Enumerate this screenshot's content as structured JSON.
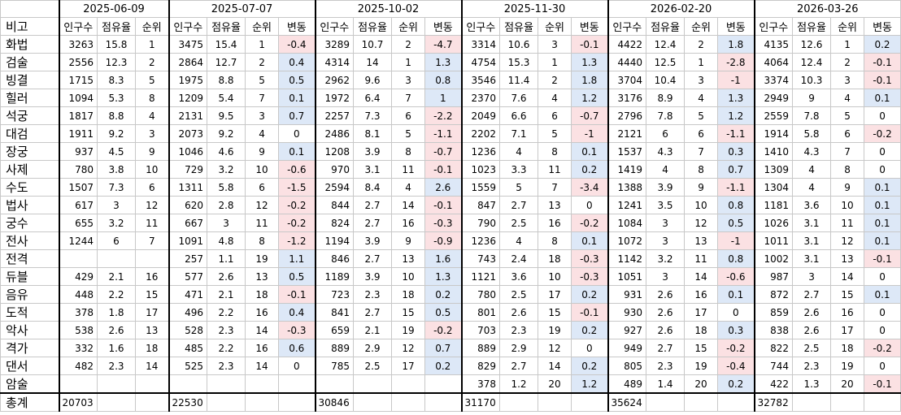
{
  "header_label": "비고",
  "total_label": "총계",
  "sub_headers": {
    "pop": "인구수",
    "share": "점유율",
    "rank": "순위",
    "change": "변동"
  },
  "colors": {
    "positive": "#dde8f7",
    "negative": "#fbe1e3"
  },
  "snapshots": [
    {
      "date": "2025-06-09",
      "has_change": false,
      "total": "20703",
      "rows": [
        [
          "3263",
          "15.8",
          "1",
          ""
        ],
        [
          "2556",
          "12.3",
          "2",
          ""
        ],
        [
          "1715",
          "8.3",
          "5",
          ""
        ],
        [
          "1094",
          "5.3",
          "8",
          ""
        ],
        [
          "1817",
          "8.8",
          "4",
          ""
        ],
        [
          "1911",
          "9.2",
          "3",
          ""
        ],
        [
          "937",
          "4.5",
          "9",
          ""
        ],
        [
          "780",
          "3.8",
          "10",
          ""
        ],
        [
          "1507",
          "7.3",
          "6",
          ""
        ],
        [
          "617",
          "3",
          "12",
          ""
        ],
        [
          "655",
          "3.2",
          "11",
          ""
        ],
        [
          "1244",
          "6",
          "7",
          ""
        ],
        [
          "",
          "",
          "",
          ""
        ],
        [
          "429",
          "2.1",
          "16",
          ""
        ],
        [
          "448",
          "2.2",
          "15",
          ""
        ],
        [
          "378",
          "1.8",
          "17",
          ""
        ],
        [
          "538",
          "2.6",
          "13",
          ""
        ],
        [
          "332",
          "1.6",
          "18",
          ""
        ],
        [
          "482",
          "2.3",
          "14",
          ""
        ],
        [
          "",
          "",
          "",
          ""
        ]
      ]
    },
    {
      "date": "2025-07-07",
      "has_change": true,
      "total": "22530",
      "rows": [
        [
          "3475",
          "15.4",
          "1",
          "-0.4"
        ],
        [
          "2864",
          "12.7",
          "2",
          "0.4"
        ],
        [
          "1975",
          "8.8",
          "5",
          "0.5"
        ],
        [
          "1209",
          "5.4",
          "7",
          "0.1"
        ],
        [
          "2131",
          "9.5",
          "3",
          "0.7"
        ],
        [
          "2073",
          "9.2",
          "4",
          "0"
        ],
        [
          "1046",
          "4.6",
          "9",
          "0.1"
        ],
        [
          "729",
          "3.2",
          "10",
          "-0.6"
        ],
        [
          "1311",
          "5.8",
          "6",
          "-1.5"
        ],
        [
          "620",
          "2.8",
          "12",
          "-0.2"
        ],
        [
          "667",
          "3",
          "11",
          "-0.2"
        ],
        [
          "1091",
          "4.8",
          "8",
          "-1.2"
        ],
        [
          "257",
          "1.1",
          "19",
          "1.1"
        ],
        [
          "577",
          "2.6",
          "13",
          "0.5"
        ],
        [
          "471",
          "2.1",
          "18",
          "-0.1"
        ],
        [
          "496",
          "2.2",
          "16",
          "0.4"
        ],
        [
          "528",
          "2.3",
          "14",
          "-0.3"
        ],
        [
          "485",
          "2.2",
          "16",
          "0.6"
        ],
        [
          "525",
          "2.3",
          "14",
          "0"
        ],
        [
          "",
          "",
          "",
          ""
        ]
      ]
    },
    {
      "date": "2025-10-02",
      "has_change": true,
      "total": "30846",
      "rows": [
        [
          "3289",
          "10.7",
          "2",
          "-4.7"
        ],
        [
          "4314",
          "14",
          "1",
          "1.3"
        ],
        [
          "2962",
          "9.6",
          "3",
          "0.8"
        ],
        [
          "1972",
          "6.4",
          "7",
          "1"
        ],
        [
          "2257",
          "7.3",
          "6",
          "-2.2"
        ],
        [
          "2486",
          "8.1",
          "5",
          "-1.1"
        ],
        [
          "1208",
          "3.9",
          "8",
          "-0.7"
        ],
        [
          "970",
          "3.1",
          "11",
          "-0.1"
        ],
        [
          "2594",
          "8.4",
          "4",
          "2.6"
        ],
        [
          "844",
          "2.7",
          "14",
          "-0.1"
        ],
        [
          "824",
          "2.7",
          "16",
          "-0.3"
        ],
        [
          "1194",
          "3.9",
          "9",
          "-0.9"
        ],
        [
          "846",
          "2.7",
          "13",
          "1.6"
        ],
        [
          "1189",
          "3.9",
          "10",
          "1.3"
        ],
        [
          "723",
          "2.3",
          "18",
          "0.2"
        ],
        [
          "841",
          "2.7",
          "15",
          "0.5"
        ],
        [
          "659",
          "2.1",
          "19",
          "-0.2"
        ],
        [
          "889",
          "2.9",
          "12",
          "0.7"
        ],
        [
          "785",
          "2.5",
          "17",
          "0.2"
        ],
        [
          "",
          "",
          "",
          ""
        ]
      ]
    },
    {
      "date": "2025-11-30",
      "has_change": true,
      "total": "31170",
      "rows": [
        [
          "3314",
          "10.6",
          "3",
          "-0.1"
        ],
        [
          "4754",
          "15.3",
          "1",
          "1.3"
        ],
        [
          "3546",
          "11.4",
          "2",
          "1.8"
        ],
        [
          "2370",
          "7.6",
          "4",
          "1.2"
        ],
        [
          "2049",
          "6.6",
          "6",
          "-0.7"
        ],
        [
          "2202",
          "7.1",
          "5",
          "-1"
        ],
        [
          "1236",
          "4",
          "8",
          "0.1"
        ],
        [
          "1023",
          "3.3",
          "11",
          "0.2"
        ],
        [
          "1559",
          "5",
          "7",
          "-3.4"
        ],
        [
          "847",
          "2.7",
          "13",
          "0"
        ],
        [
          "790",
          "2.5",
          "16",
          "-0.2"
        ],
        [
          "1236",
          "4",
          "8",
          "0.1"
        ],
        [
          "743",
          "2.4",
          "18",
          "-0.3"
        ],
        [
          "1121",
          "3.6",
          "10",
          "-0.3"
        ],
        [
          "780",
          "2.5",
          "17",
          "0.2"
        ],
        [
          "801",
          "2.6",
          "15",
          "-0.1"
        ],
        [
          "703",
          "2.3",
          "19",
          "0.2"
        ],
        [
          "889",
          "2.9",
          "12",
          "0"
        ],
        [
          "829",
          "2.7",
          "14",
          "0.2"
        ],
        [
          "378",
          "1.2",
          "20",
          "1.2"
        ]
      ]
    },
    {
      "date": "2026-02-20",
      "has_change": true,
      "total": "35624",
      "rows": [
        [
          "4422",
          "12.4",
          "2",
          "1.8"
        ],
        [
          "4440",
          "12.5",
          "1",
          "-2.8"
        ],
        [
          "3704",
          "10.4",
          "3",
          "-1"
        ],
        [
          "3176",
          "8.9",
          "4",
          "1.3"
        ],
        [
          "2796",
          "7.8",
          "5",
          "1.2"
        ],
        [
          "2121",
          "6",
          "6",
          "-1.1"
        ],
        [
          "1537",
          "4.3",
          "7",
          "0.3"
        ],
        [
          "1419",
          "4",
          "8",
          "0.7"
        ],
        [
          "1388",
          "3.9",
          "9",
          "-1.1"
        ],
        [
          "1241",
          "3.5",
          "10",
          "0.8"
        ],
        [
          "1084",
          "3",
          "12",
          "0.5"
        ],
        [
          "1072",
          "3",
          "13",
          "-1"
        ],
        [
          "1142",
          "3.2",
          "11",
          "0.8"
        ],
        [
          "1051",
          "3",
          "14",
          "-0.6"
        ],
        [
          "931",
          "2.6",
          "16",
          "0.1"
        ],
        [
          "930",
          "2.6",
          "17",
          "0"
        ],
        [
          "927",
          "2.6",
          "18",
          "0.3"
        ],
        [
          "949",
          "2.7",
          "15",
          "-0.2"
        ],
        [
          "805",
          "2.3",
          "19",
          "-0.4"
        ],
        [
          "489",
          "1.4",
          "20",
          "0.2"
        ]
      ]
    },
    {
      "date": "2026-03-26",
      "has_change": true,
      "total": "32782",
      "rows": [
        [
          "4135",
          "12.6",
          "1",
          "0.2"
        ],
        [
          "4064",
          "12.4",
          "2",
          "-0.1"
        ],
        [
          "3374",
          "10.3",
          "3",
          "-0.1"
        ],
        [
          "2949",
          "9",
          "4",
          "0.1"
        ],
        [
          "2559",
          "7.8",
          "5",
          "0"
        ],
        [
          "1914",
          "5.8",
          "6",
          "-0.2"
        ],
        [
          "1410",
          "4.3",
          "7",
          "0"
        ],
        [
          "1309",
          "4",
          "8",
          "0"
        ],
        [
          "1304",
          "4",
          "9",
          "0.1"
        ],
        [
          "1181",
          "3.6",
          "10",
          "0.1"
        ],
        [
          "1026",
          "3.1",
          "11",
          "0.1"
        ],
        [
          "1011",
          "3.1",
          "12",
          "0.1"
        ],
        [
          "1002",
          "3.1",
          "13",
          "-0.1"
        ],
        [
          "987",
          "3",
          "14",
          "0"
        ],
        [
          "872",
          "2.7",
          "15",
          "0.1"
        ],
        [
          "859",
          "2.6",
          "16",
          "0"
        ],
        [
          "838",
          "2.6",
          "17",
          "0"
        ],
        [
          "822",
          "2.5",
          "18",
          "-0.2"
        ],
        [
          "744",
          "2.3",
          "19",
          "0"
        ],
        [
          "422",
          "1.3",
          "20",
          "-0.1"
        ]
      ]
    }
  ],
  "jobs": [
    "화법",
    "검술",
    "빙결",
    "힐러",
    "석궁",
    "대검",
    "장궁",
    "사제",
    "수도",
    "법사",
    "궁수",
    "전사",
    "전격",
    "듀블",
    "음유",
    "도적",
    "악사",
    "격가",
    "댄서",
    "암술"
  ]
}
